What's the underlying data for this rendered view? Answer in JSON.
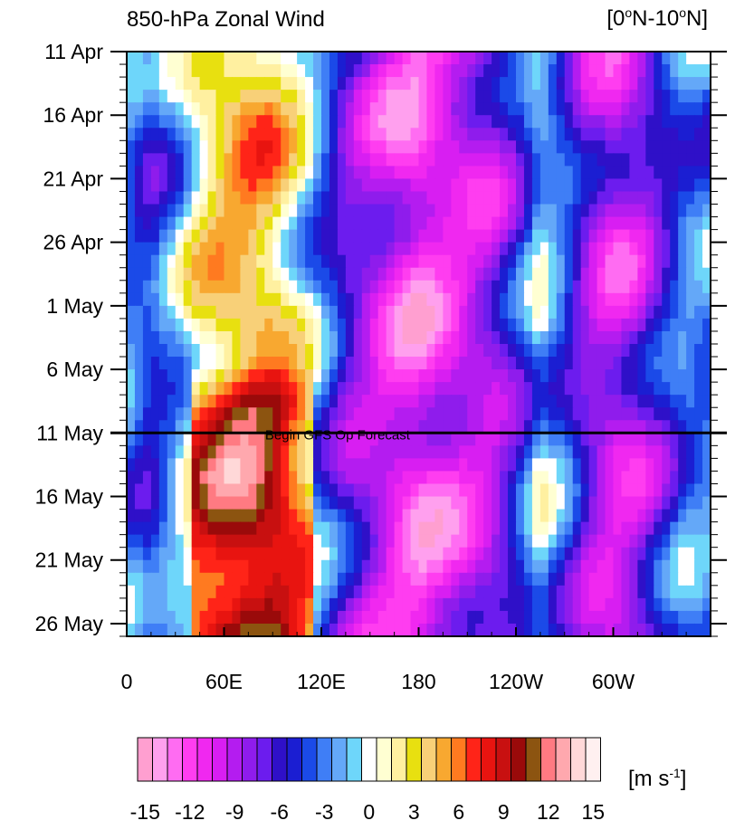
{
  "chart_data": {
    "type": "heatmap",
    "title": "850-hPa Zonal Wind",
    "region_label": {
      "prefix": "[0",
      "lat1": "N-10",
      "lat2": "N]"
    },
    "units": {
      "base": "[m s",
      "exp": "-1",
      "close": "]"
    },
    "annotation": "Begin GFS Op Forecast",
    "forecast_start": "11 May",
    "x_ticks": [
      {
        "lon": 0,
        "label": "0"
      },
      {
        "lon": 60,
        "label": "60E"
      },
      {
        "lon": 120,
        "label": "120E"
      },
      {
        "lon": 180,
        "label": "180"
      },
      {
        "lon": 240,
        "label": "120W"
      },
      {
        "lon": 300,
        "label": "60W"
      }
    ],
    "y_ticks": [
      {
        "day": 0,
        "label": "11 Apr"
      },
      {
        "day": 5,
        "label": "16 Apr"
      },
      {
        "day": 10,
        "label": "21 Apr"
      },
      {
        "day": 15,
        "label": "26 Apr"
      },
      {
        "day": 20,
        "label": "1 May"
      },
      {
        "day": 25,
        "label": "6 May"
      },
      {
        "day": 30,
        "label": "11 May"
      },
      {
        "day": 35,
        "label": "16 May"
      },
      {
        "day": 40,
        "label": "21 May"
      },
      {
        "day": 45,
        "label": "26 May"
      }
    ],
    "xlim": [
      0,
      360
    ],
    "ylim": [
      0,
      46
    ],
    "contour_levels": [
      -15,
      -14,
      -13,
      -12,
      -11,
      -10,
      -9,
      -8,
      -7,
      -6,
      -5,
      -4,
      -3,
      -2,
      -1,
      0,
      1,
      2,
      3,
      4,
      5,
      6,
      7,
      8,
      9,
      10,
      11,
      12,
      13,
      14,
      15
    ],
    "colorbar_labels": [
      "-15",
      "-12",
      "-9",
      "-6",
      "-3",
      "0",
      "3",
      "6",
      "9",
      "12",
      "15"
    ],
    "colors": [
      "#ff9fd0",
      "#ffa0ee",
      "#ff6cf2",
      "#ff3df0",
      "#f028f0",
      "#d81ef2",
      "#b41cf0",
      "#8f1cec",
      "#6c1cee",
      "#2f10c8",
      "#1b1ed2",
      "#1b4ae8",
      "#3f7ef6",
      "#64a8f8",
      "#6ed6fa",
      "#ffffff",
      "#ffffd2",
      "#fff0a0",
      "#e8e010",
      "#f8d078",
      "#f8a830",
      "#ff7a20",
      "#ff2418",
      "#e81410",
      "#c81010",
      "#9a0a0a",
      "#8c5410",
      "#ff7a82",
      "#ffa8ae",
      "#ffd8d8",
      "#fff0f0"
    ],
    "wind_structure": [
      {
        "lon": 0,
        "u": -3
      },
      {
        "lon": 15,
        "u": -5
      },
      {
        "lon": 30,
        "u": -2
      },
      {
        "lon": 45,
        "u": 2
      },
      {
        "lon": 60,
        "u": 4
      },
      {
        "lon": 75,
        "u": 5
      },
      {
        "lon": 90,
        "u": 4
      },
      {
        "lon": 105,
        "u": 1
      },
      {
        "lon": 120,
        "u": -3
      },
      {
        "lon": 135,
        "u": -7
      },
      {
        "lon": 150,
        "u": -9
      },
      {
        "lon": 165,
        "u": -11
      },
      {
        "lon": 180,
        "u": -12
      },
      {
        "lon": 195,
        "u": -11
      },
      {
        "lon": 210,
        "u": -10
      },
      {
        "lon": 225,
        "u": -9
      },
      {
        "lon": 240,
        "u": -6
      },
      {
        "lon": 255,
        "u": -1
      },
      {
        "lon": 270,
        "u": -4
      },
      {
        "lon": 285,
        "u": -8
      },
      {
        "lon": 300,
        "u": -10
      },
      {
        "lon": 315,
        "u": -9
      },
      {
        "lon": 330,
        "u": -6
      },
      {
        "lon": 345,
        "u": -3
      },
      {
        "lon": 360,
        "u": -3
      }
    ]
  }
}
